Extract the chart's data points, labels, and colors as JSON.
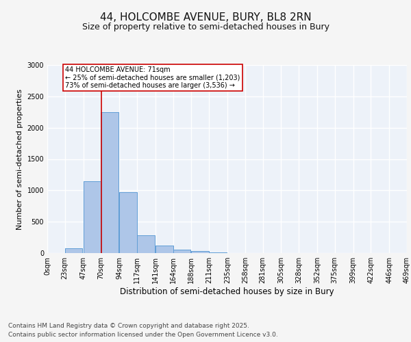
{
  "title": "44, HOLCOMBE AVENUE, BURY, BL8 2RN",
  "subtitle": "Size of property relative to semi-detached houses in Bury",
  "xlabel": "Distribution of semi-detached houses by size in Bury",
  "ylabel": "Number of semi-detached properties",
  "footer_line1": "Contains HM Land Registry data © Crown copyright and database right 2025.",
  "footer_line2": "Contains public sector information licensed under the Open Government Licence v3.0.",
  "bin_labels": [
    "0sqm",
    "23sqm",
    "47sqm",
    "70sqm",
    "94sqm",
    "117sqm",
    "141sqm",
    "164sqm",
    "188sqm",
    "211sqm",
    "235sqm",
    "258sqm",
    "281sqm",
    "305sqm",
    "328sqm",
    "352sqm",
    "375sqm",
    "399sqm",
    "422sqm",
    "446sqm",
    "469sqm"
  ],
  "bar_values": [
    0,
    75,
    1150,
    2250,
    975,
    285,
    115,
    50,
    35,
    15,
    5,
    0,
    0,
    0,
    0,
    0,
    0,
    0,
    0,
    0
  ],
  "bar_color": "#aec6e8",
  "bar_edge_color": "#5b9bd5",
  "property_line_x": 71,
  "bin_edges": [
    0,
    23,
    47,
    70,
    94,
    117,
    141,
    164,
    188,
    211,
    235,
    258,
    281,
    305,
    328,
    352,
    375,
    399,
    422,
    446,
    469
  ],
  "annotation_title": "44 HOLCOMBE AVENUE: 71sqm",
  "annotation_line2": "← 25% of semi-detached houses are smaller (1,203)",
  "annotation_line3": "73% of semi-detached houses are larger (3,536) →",
  "annotation_box_color": "#cc0000",
  "ylim": [
    0,
    3000
  ],
  "background_color": "#edf2f9",
  "grid_color": "#ffffff",
  "title_fontsize": 11,
  "subtitle_fontsize": 9,
  "axis_label_fontsize": 8,
  "tick_fontsize": 7,
  "annotation_fontsize": 7,
  "footer_fontsize": 6.5
}
